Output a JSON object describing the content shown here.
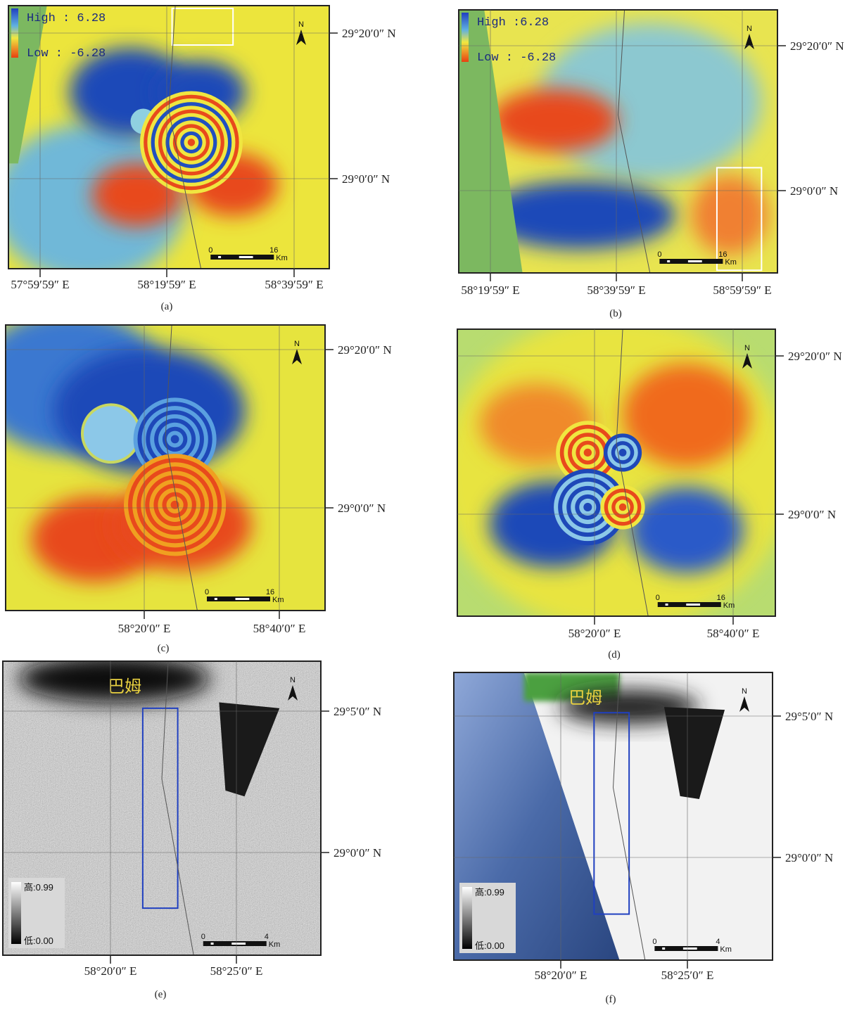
{
  "panels": [
    {
      "label": "(a)",
      "legend": {
        "high": "High : 6.28",
        "low": "Low : -6.28"
      },
      "north": "N",
      "scale_bar": {
        "start": "0",
        "end": "16",
        "unit": "Km"
      },
      "lat_labels": [
        "29°20′0″ N",
        "29°0′0″ N"
      ],
      "lon_labels": [
        "57°59′59″ E",
        "58°19′59″ E",
        "58°39′59″ E"
      ]
    },
    {
      "label": "(b)",
      "legend": {
        "high": "High :6.28",
        "low": "Low : -6.28"
      },
      "north": "N",
      "scale_bar": {
        "start": "0",
        "end": "16",
        "unit": "Km"
      },
      "lat_labels": [
        "29°20′0″ N",
        "29°0′0″ N"
      ],
      "lon_labels": [
        "58°19′59″ E",
        "58°39′59″ E",
        "58°59′59″ E"
      ]
    },
    {
      "label": "(c)",
      "north": "N",
      "scale_bar": {
        "start": "0",
        "end": "16",
        "unit": "Km"
      },
      "lat_labels": [
        "29°20′0″ N",
        "29°0′0″ N"
      ],
      "lon_labels": [
        "58°20′0″ E",
        "58°40′0″ E"
      ]
    },
    {
      "label": "(d)",
      "north": "N",
      "scale_bar": {
        "start": "0",
        "end": "16",
        "unit": "Km"
      },
      "lat_labels": [
        "29°20′0″ N",
        "29°0′0″ N"
      ],
      "lon_labels": [
        "58°20′0″ E",
        "58°40′0″ E"
      ]
    },
    {
      "label": "(e)",
      "legend": {
        "high": "高:0.99",
        "low": "低:0.00"
      },
      "place_name": "巴姆",
      "north": "N",
      "scale_bar": {
        "start": "0",
        "end": "4",
        "unit": "Km"
      },
      "lat_labels": [
        "29°5′0″ N",
        "29°0′0″ N"
      ],
      "lon_labels": [
        "58°20′0″ E",
        "58°25′0″ E"
      ]
    },
    {
      "label": "(f)",
      "legend": {
        "high": "高:0.99",
        "low": "低:0.00"
      },
      "place_name": "巴姆",
      "north": "N",
      "scale_bar": {
        "start": "0",
        "end": "4",
        "unit": "Km"
      },
      "lat_labels": [
        "29°5′0″ N",
        "29°0′0″ N"
      ],
      "lon_labels": [
        "58°20′0″ E",
        "58°25′0″ E"
      ]
    }
  ]
}
